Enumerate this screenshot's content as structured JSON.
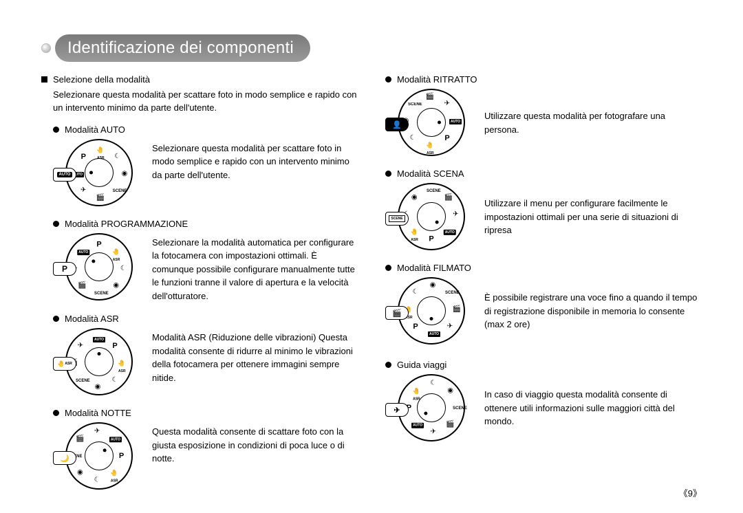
{
  "page_title": "Identificazione dei componenti",
  "page_number": "9》",
  "section": {
    "selection_heading": "Selezione della modalità",
    "selection_intro": "Selezionare questa modalità per scattare foto in modo semplice e rapido con un intervento minimo da parte dell'utente."
  },
  "left_modes": [
    {
      "title": "Modalità AUTO",
      "desc": "Selezionare questa modalità per scattare foto in modo semplice e rapido con un intervento minimo da parte dell'utente.",
      "dial_rotation": 0,
      "pointer_label": "AUTO",
      "pointer_style": "blk-box"
    },
    {
      "title": "Modalità PROGRAMMAZIONE",
      "desc": "Selezionare la modalità automatica per configurare la fotocamera con impostazioni ottimali. È comunque possibile configurare manualmente tutte le funzioni tranne il valore di apertura e la velocità dell'otturatore.",
      "dial_rotation": 45,
      "pointer_label": "P",
      "pointer_style": "plain"
    },
    {
      "title": "Modalità ASR",
      "desc": "Modalità ASR (Riduzione delle vibrazioni) Questa modalità consente di ridurre al minimo le vibrazioni della fotocamera per ottenere immagini sempre nitide.",
      "dial_rotation": 90,
      "pointer_label": "ASR",
      "pointer_style": "hand"
    },
    {
      "title": "Modalità NOTTE",
      "desc": "Questa modalità consente di scattare foto con la giusta esposizione in condizioni di poca luce o di notte.",
      "dial_rotation": 135,
      "pointer_label": "🌙",
      "pointer_style": "icon"
    }
  ],
  "right_modes": [
    {
      "title": "Modalità RITRATTO",
      "desc": "Utilizzare questa modalità per fotografare una persona.",
      "dial_rotation": 180,
      "pointer_label": "👤",
      "pointer_style": "icon-blk"
    },
    {
      "title": "Modalità SCENA",
      "desc": "Utilizzare il menu per configurare facilmente le impostazioni ottimali per una serie di situazioni di ripresa",
      "dial_rotation": 225,
      "pointer_label": "SCENE",
      "pointer_style": "text-box"
    },
    {
      "title": "Modalità FILMATO",
      "desc": "È possibile registrare una voce fino a quando il tempo di registrazione disponibile in memoria lo consente (max 2 ore)",
      "dial_rotation": 270,
      "pointer_label": "🎬",
      "pointer_style": "icon"
    },
    {
      "title": "Guida viaggi",
      "desc": "In caso di viaggio questa modalità consente di ottenere utili informazioni sulle maggiori città del mondo.",
      "dial_rotation": 315,
      "pointer_label": "✈",
      "pointer_style": "icon"
    }
  ],
  "dial_positions": [
    {
      "angle": 0,
      "glyph": "AUTO",
      "type": "box"
    },
    {
      "angle": 45,
      "glyph": "P",
      "type": "text"
    },
    {
      "angle": 90,
      "glyph": "🤚",
      "type": "asr"
    },
    {
      "angle": 135,
      "glyph": "☾",
      "type": "glyph"
    },
    {
      "angle": 180,
      "glyph": "◉",
      "type": "glyph"
    },
    {
      "angle": 225,
      "glyph": "SCENE",
      "type": "arc"
    },
    {
      "angle": 270,
      "glyph": "🎬",
      "type": "glyph"
    },
    {
      "angle": 315,
      "glyph": "✈",
      "type": "glyph"
    }
  ],
  "colors": {
    "text": "#000000",
    "background": "#ffffff",
    "pill_gradient_top": "#7a7a7a",
    "pill_gradient_bottom": "#9a9a9a"
  },
  "typography": {
    "title_fontsize": 24,
    "body_fontsize": 13,
    "dial_icon_fontsize": 10
  }
}
